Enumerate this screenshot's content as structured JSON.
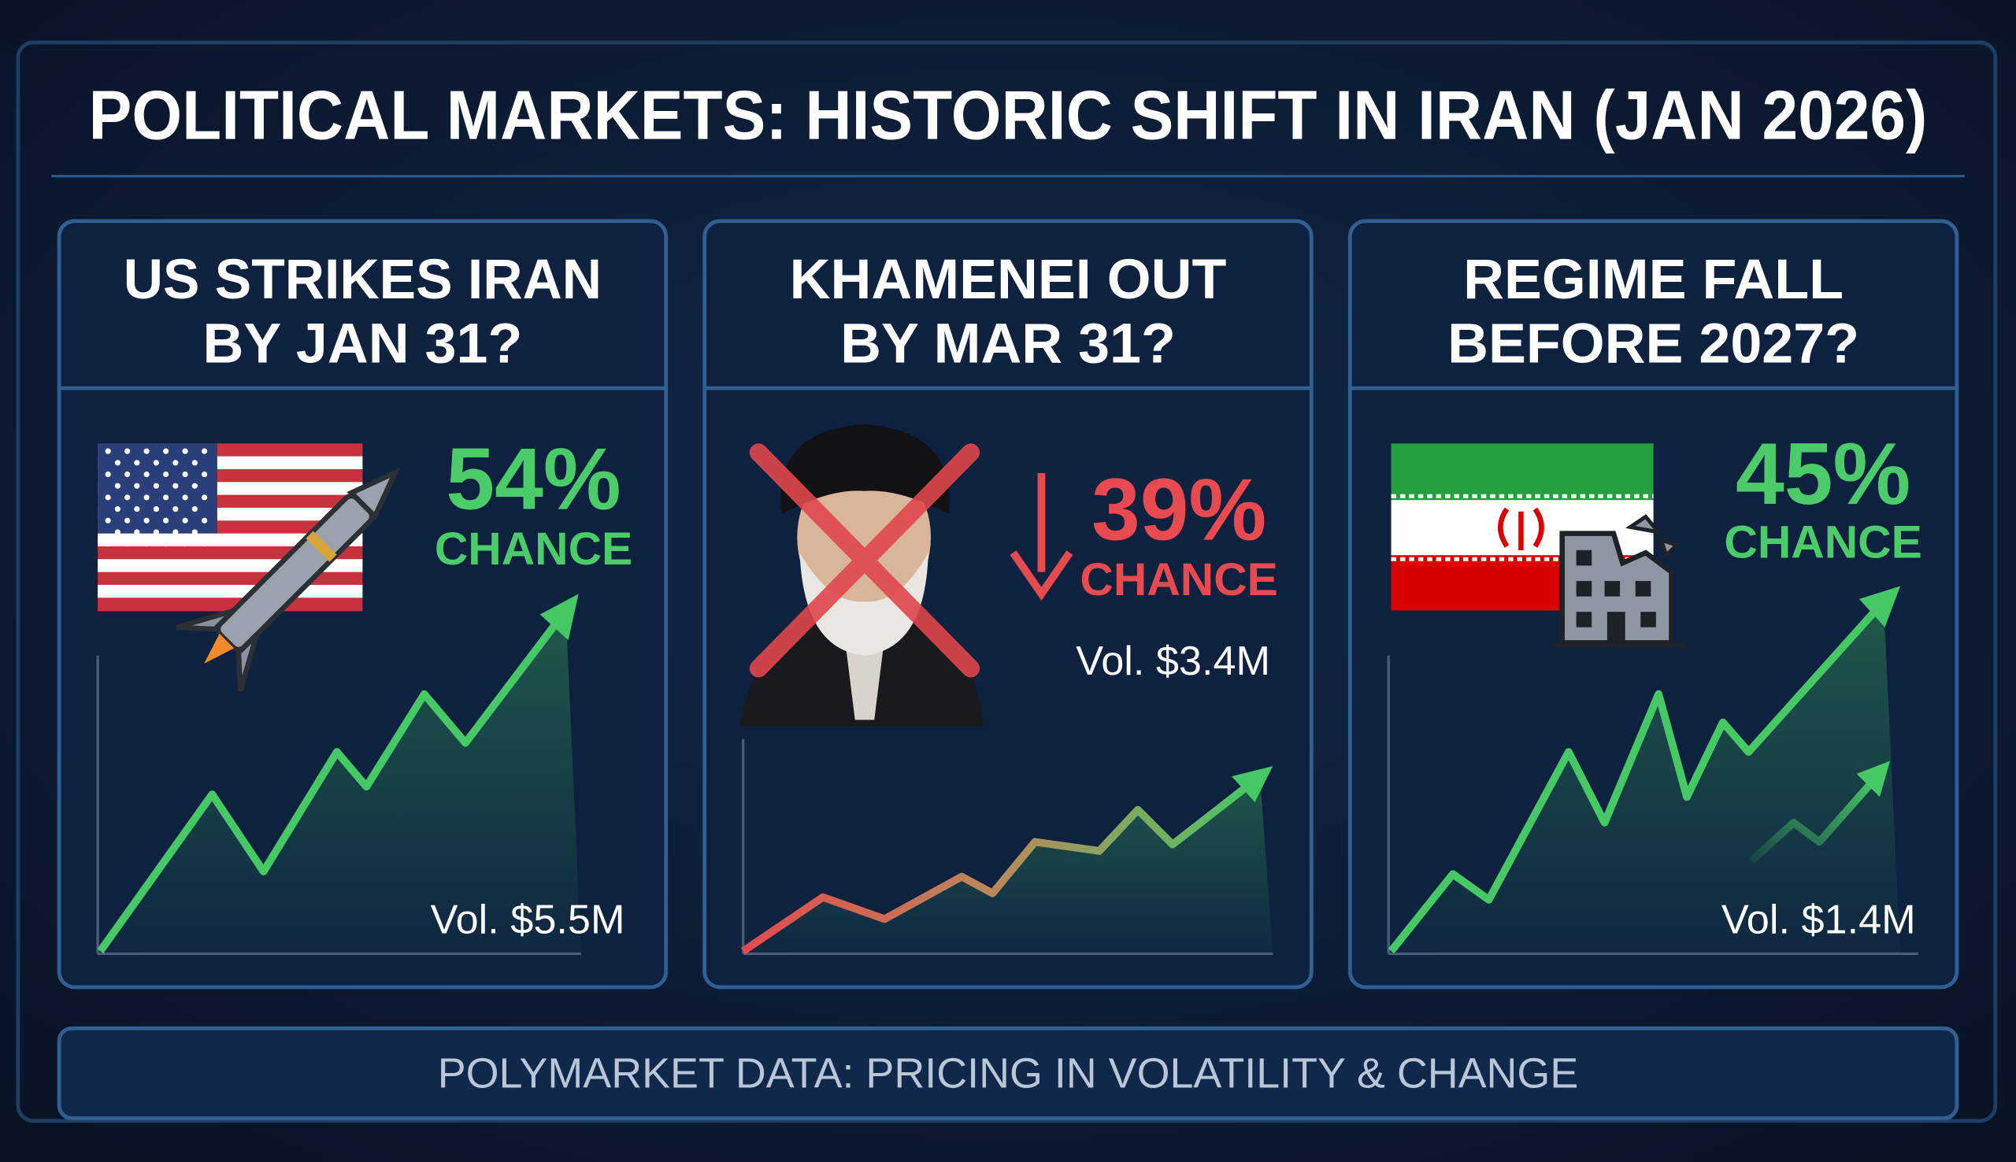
{
  "header": {
    "title": "POLITICAL MARKETS: HISTORIC SHIFT IN IRAN (JAN 2026)"
  },
  "cards": [
    {
      "question": [
        "US STRIKES IRAN",
        "BY JAN 31?"
      ],
      "chance": "54%",
      "chance_label": "CHANCE",
      "volume": "Vol. $5.5M"
    },
    {
      "question": [
        "KHAMENEI OUT",
        "BY MAR 31?"
      ],
      "chance": "39%",
      "chance_label": "CHANCE",
      "volume": "Vol. $3.4M"
    },
    {
      "question": [
        "REGIME FALL",
        "BEFORE 2027?"
      ],
      "chance": "45%",
      "chance_label": "CHANCE",
      "volume": "Vol. $1.4M"
    }
  ],
  "footer": {
    "text": "POLYMARKET DATA: PRICING IN VOLATILITY & CHANGE"
  }
}
